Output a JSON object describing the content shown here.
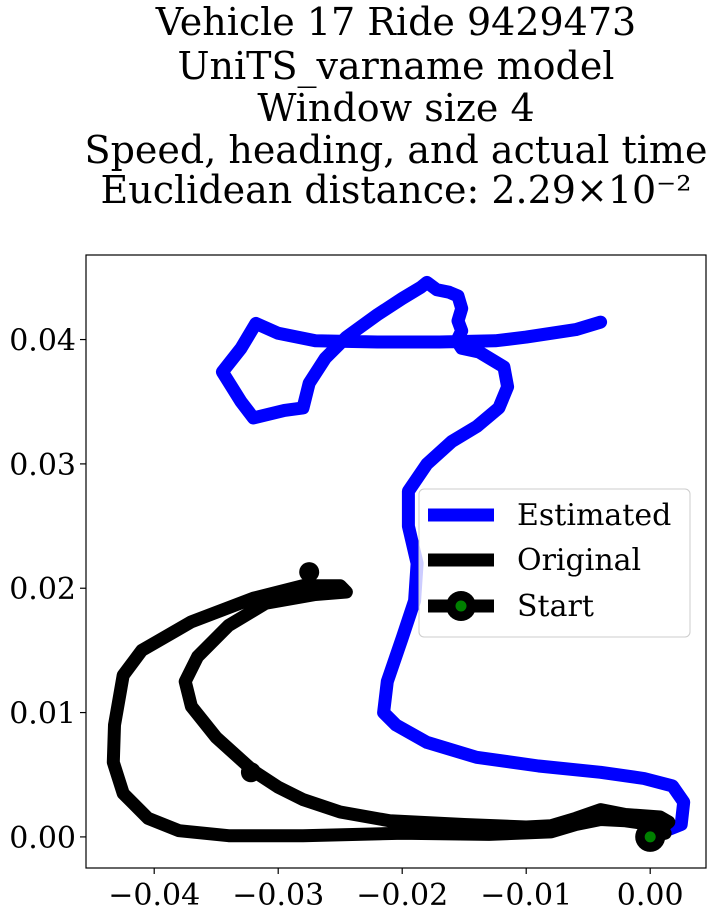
{
  "chart_data": {
    "type": "line",
    "title_lines": [
      "Vehicle 17 Ride 9429473",
      "UniTS_varname model",
      "Window size 4",
      "Speed, heading, and actual time",
      "Euclidean distance: 2.29×10⁻²"
    ],
    "xlabel": "",
    "ylabel": "",
    "xlim": [
      -0.0455,
      0.0045
    ],
    "ylim": [
      -0.0025,
      0.0468
    ],
    "grid": false,
    "legend_placement": "center-right",
    "x_ticks": [
      {
        "value": -0.04,
        "label": "−0.04"
      },
      {
        "value": -0.03,
        "label": "−0.03"
      },
      {
        "value": -0.02,
        "label": "−0.02"
      },
      {
        "value": -0.01,
        "label": "−0.01"
      },
      {
        "value": 0.0,
        "label": "0.00"
      }
    ],
    "y_ticks": [
      {
        "value": 0.0,
        "label": "0.00"
      },
      {
        "value": 0.01,
        "label": "0.01"
      },
      {
        "value": 0.02,
        "label": "0.02"
      },
      {
        "value": 0.03,
        "label": "0.03"
      },
      {
        "value": 0.04,
        "label": "0.04"
      }
    ],
    "series": [
      {
        "name": "Estimated",
        "color": "#0000ff",
        "points": [
          [
            0.0,
            0.0
          ],
          [
            0.0025,
            0.001
          ],
          [
            0.0027,
            0.0028
          ],
          [
            0.0018,
            0.0041
          ],
          [
            -0.0005,
            0.0047
          ],
          [
            -0.004,
            0.0052
          ],
          [
            -0.009,
            0.0057
          ],
          [
            -0.014,
            0.0064
          ],
          [
            -0.018,
            0.0076
          ],
          [
            -0.0205,
            0.009
          ],
          [
            -0.0215,
            0.01
          ],
          [
            -0.0212,
            0.0125
          ],
          [
            -0.02,
            0.016
          ],
          [
            -0.019,
            0.019
          ],
          [
            -0.0188,
            0.022
          ],
          [
            -0.0195,
            0.025
          ],
          [
            -0.0195,
            0.0278
          ],
          [
            -0.018,
            0.03
          ],
          [
            -0.016,
            0.0318
          ],
          [
            -0.014,
            0.033
          ],
          [
            -0.0122,
            0.0345
          ],
          [
            -0.0115,
            0.0362
          ],
          [
            -0.0118,
            0.0378
          ],
          [
            -0.0138,
            0.039
          ],
          [
            -0.0152,
            0.0393
          ],
          [
            -0.0156,
            0.0399
          ],
          [
            -0.0152,
            0.0407
          ],
          [
            -0.0155,
            0.0415
          ],
          [
            -0.0152,
            0.0425
          ],
          [
            -0.0155,
            0.0435
          ],
          [
            -0.0162,
            0.0438
          ],
          [
            -0.0172,
            0.044
          ],
          [
            -0.018,
            0.0446
          ],
          [
            -0.0185,
            0.0442
          ],
          [
            -0.02,
            0.0433
          ],
          [
            -0.022,
            0.042
          ],
          [
            -0.0245,
            0.0402
          ],
          [
            -0.0262,
            0.0385
          ],
          [
            -0.0275,
            0.0365
          ],
          [
            -0.028,
            0.0345
          ],
          [
            -0.0295,
            0.0343
          ],
          [
            -0.032,
            0.0337
          ],
          [
            -0.033,
            0.035
          ],
          [
            -0.0345,
            0.0374
          ],
          [
            -0.033,
            0.0393
          ],
          [
            -0.0318,
            0.0413
          ],
          [
            -0.03,
            0.0405
          ],
          [
            -0.027,
            0.0399
          ],
          [
            -0.022,
            0.0398
          ],
          [
            -0.017,
            0.0398
          ],
          [
            -0.0125,
            0.0399
          ],
          [
            -0.01,
            0.0402
          ],
          [
            -0.008,
            0.0405
          ],
          [
            -0.006,
            0.0408
          ],
          [
            -0.004,
            0.0414
          ]
        ]
      },
      {
        "name": "Original",
        "color": "#000000",
        "points": [
          [
            0.0,
            0.0
          ],
          [
            0.0015,
            0.0012
          ],
          [
            0.0008,
            0.0016
          ],
          [
            -0.002,
            0.0018
          ],
          [
            -0.004,
            0.0022
          ],
          [
            -0.006,
            0.0015
          ],
          [
            -0.008,
            0.0009
          ],
          [
            -0.01,
            0.0008
          ],
          [
            -0.015,
            0.001
          ],
          [
            -0.021,
            0.0013
          ],
          [
            -0.025,
            0.002
          ],
          [
            -0.028,
            0.003
          ],
          [
            -0.03,
            0.004
          ],
          [
            -0.032,
            0.0053
          ],
          [
            -0.035,
            0.008
          ],
          [
            -0.037,
            0.0105
          ],
          [
            -0.0375,
            0.0125
          ],
          [
            -0.0365,
            0.0145
          ],
          [
            -0.034,
            0.017
          ],
          [
            -0.031,
            0.0188
          ],
          [
            -0.027,
            0.0195
          ],
          [
            -0.0245,
            0.0197
          ],
          [
            -0.025,
            0.0202
          ],
          [
            -0.028,
            0.0202
          ],
          [
            -0.032,
            0.0192
          ],
          [
            -0.037,
            0.0173
          ],
          [
            -0.041,
            0.015
          ],
          [
            -0.0425,
            0.013
          ],
          [
            -0.0432,
            0.009
          ],
          [
            -0.0433,
            0.006
          ],
          [
            -0.0425,
            0.0035
          ],
          [
            -0.0405,
            0.0015
          ],
          [
            -0.038,
            0.0005
          ],
          [
            -0.034,
            0.0001
          ],
          [
            -0.028,
            0.0001
          ],
          [
            -0.02,
            0.0003
          ],
          [
            -0.013,
            0.0002
          ],
          [
            -0.008,
            0.0004
          ],
          [
            -0.006,
            0.001
          ],
          [
            -0.004,
            0.0014
          ],
          [
            -0.002,
            0.0013
          ],
          [
            0.0008,
            0.0009
          ],
          [
            0.0012,
            0.0003
          ],
          [
            0.0,
            0.0
          ]
        ]
      }
    ],
    "start_marker": {
      "name": "Start",
      "x": 0.0,
      "y": 0.0,
      "fill": "#008000",
      "edge": "#000000"
    },
    "extra_markers": [
      {
        "x": -0.0322,
        "y": 0.0052
      },
      {
        "x": -0.0275,
        "y": 0.0213
      }
    ],
    "legend": [
      {
        "label": "Estimated",
        "color": "#0000ff",
        "marker": false
      },
      {
        "label": "Original",
        "color": "#000000",
        "marker": false
      },
      {
        "label": "Start",
        "color": "#000000",
        "marker": true
      }
    ]
  }
}
